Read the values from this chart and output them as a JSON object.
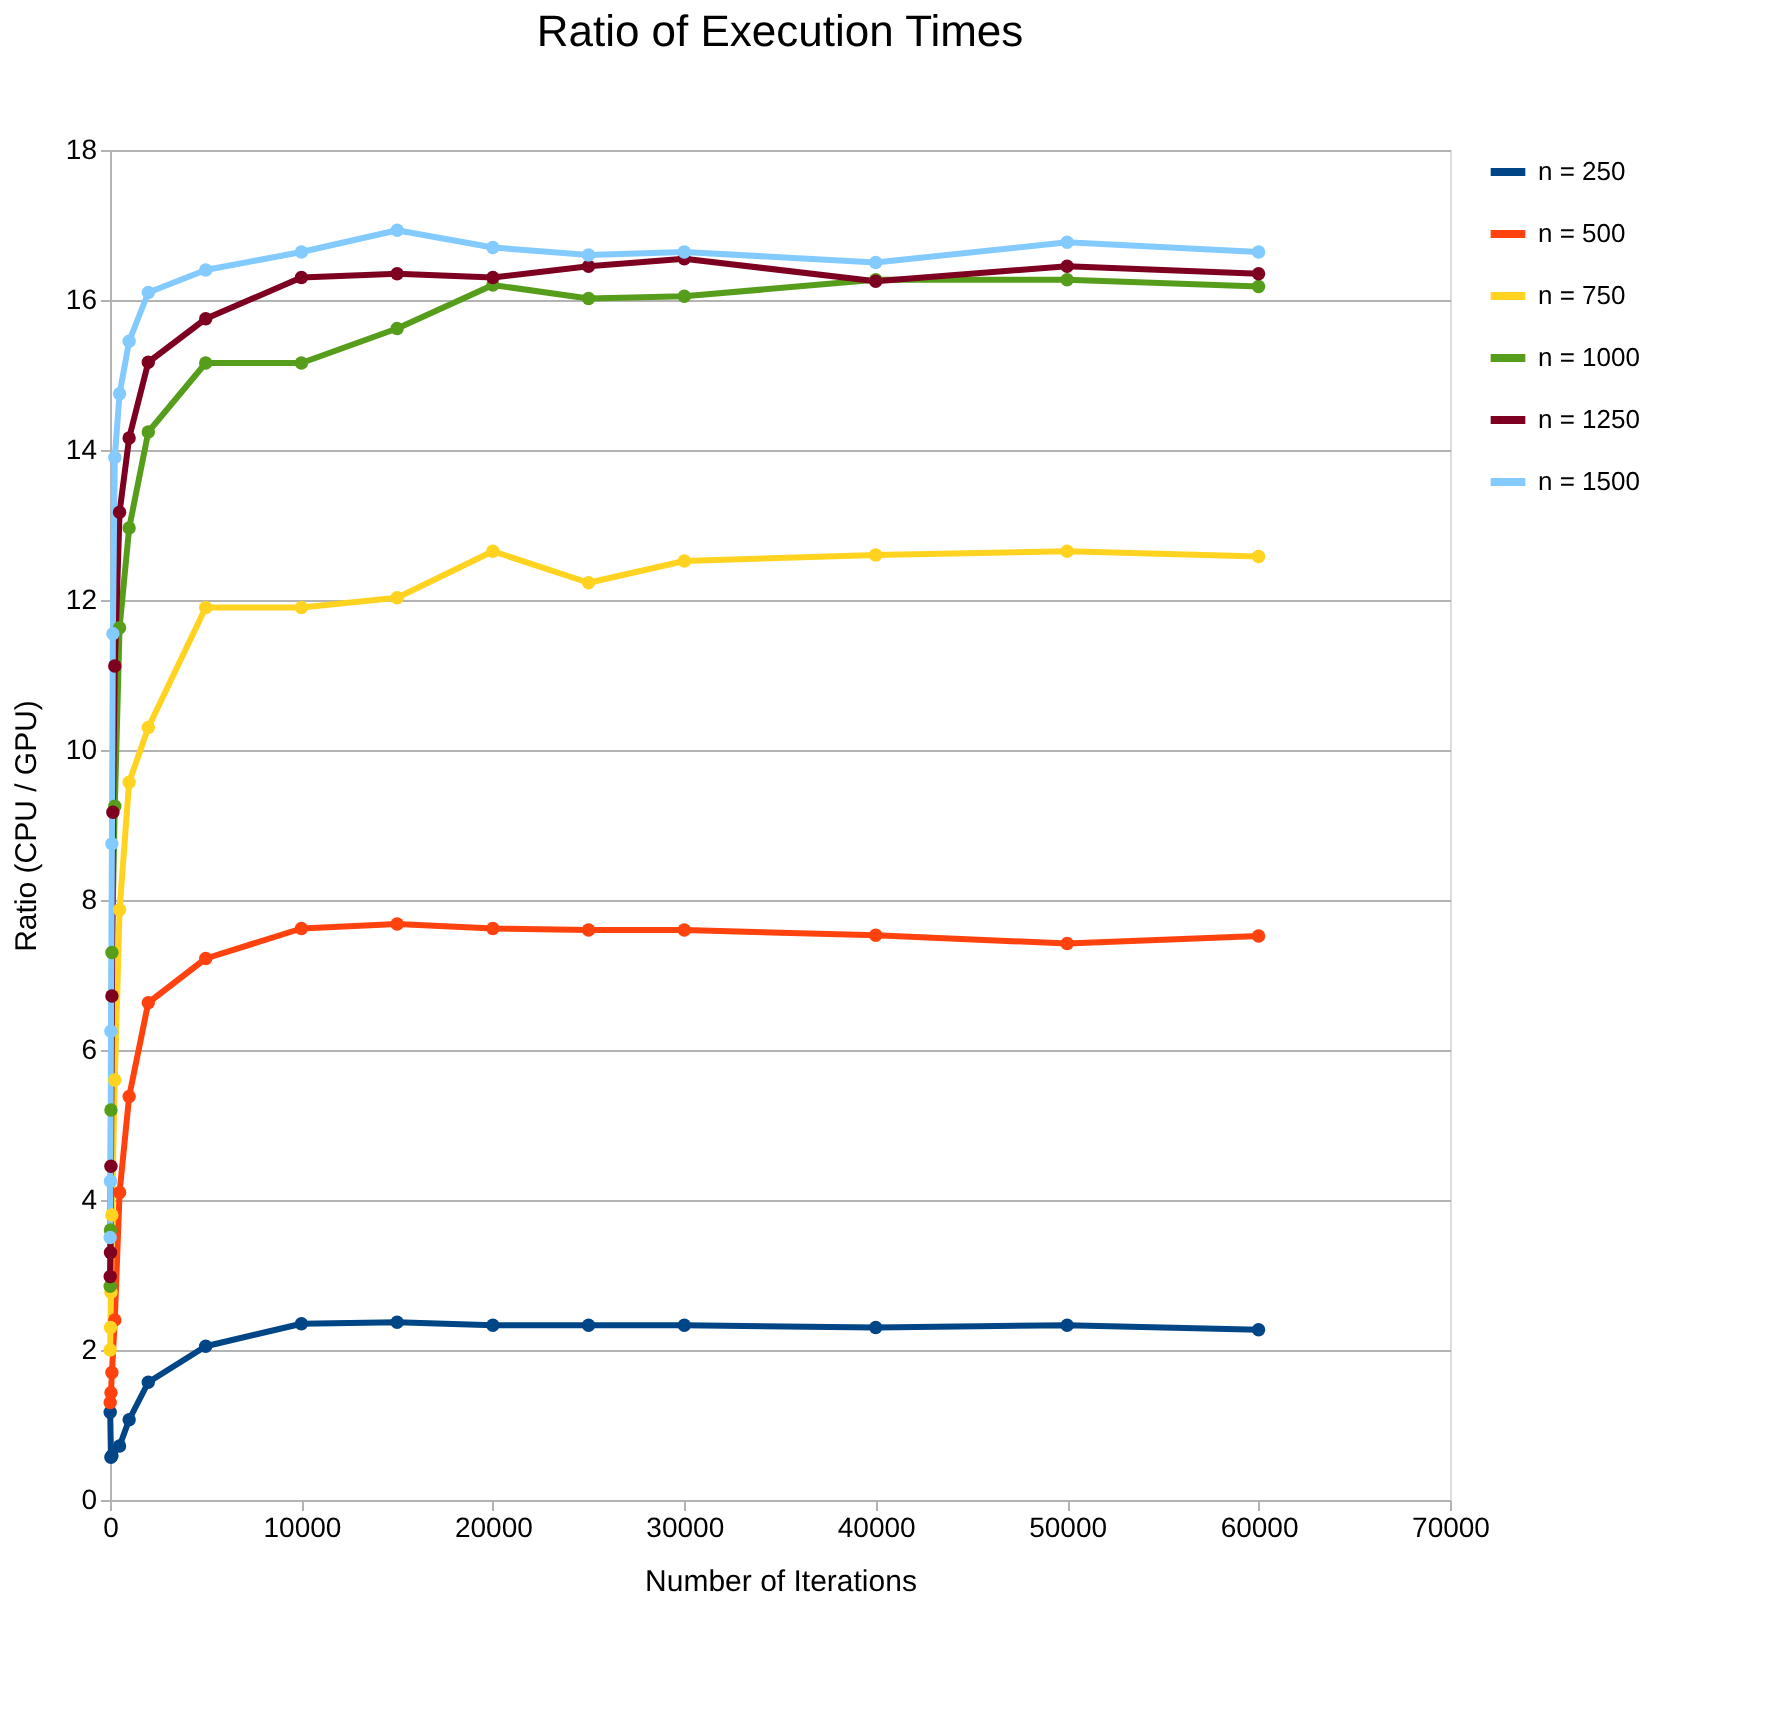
{
  "chart_data": {
    "type": "line",
    "title": "Ratio of Execution Times",
    "xlabel": "Number of Iterations",
    "ylabel": "Ratio (CPU / GPU)",
    "xlim": [
      0,
      70000
    ],
    "xticks": [
      0,
      10000,
      20000,
      30000,
      40000,
      50000,
      60000,
      70000
    ],
    "ylim": [
      0,
      18
    ],
    "yticks": [
      0,
      2,
      4,
      6,
      8,
      10,
      12,
      14,
      16,
      18
    ],
    "grid": "y",
    "legend": "right",
    "marker": "circle",
    "line_style": "solid",
    "series": [
      {
        "name": "n = 250",
        "color": "#004586",
        "x": [
          10,
          50,
          100,
          500,
          1000,
          2000,
          5000,
          10000,
          15000,
          20000,
          25000,
          30000,
          40000,
          50000,
          60000
        ],
        "values": [
          1.17,
          0.57,
          0.59,
          0.72,
          1.07,
          1.57,
          2.05,
          2.35,
          2.37,
          2.33,
          2.33,
          2.33,
          2.3,
          2.33,
          2.27
        ]
      },
      {
        "name": "n = 500",
        "color": "#ff420e",
        "x": [
          10,
          50,
          100,
          250,
          500,
          1000,
          2000,
          5000,
          10000,
          15000,
          20000,
          25000,
          30000,
          40000,
          50000,
          60000
        ],
        "values": [
          1.3,
          1.43,
          1.7,
          2.4,
          4.1,
          5.38,
          6.63,
          7.22,
          7.62,
          7.68,
          7.62,
          7.6,
          7.6,
          7.53,
          7.42,
          7.52
        ]
      },
      {
        "name": "n = 750",
        "color": "#ffd320",
        "x": [
          10,
          25,
          50,
          100,
          250,
          500,
          1000,
          2000,
          5000,
          10000,
          15000,
          20000,
          25000,
          30000,
          40000,
          50000,
          60000
        ],
        "values": [
          2.0,
          2.3,
          2.77,
          3.8,
          5.6,
          7.87,
          9.57,
          10.3,
          11.9,
          11.9,
          12.03,
          12.65,
          12.23,
          12.52,
          12.6,
          12.65,
          12.58
        ]
      },
      {
        "name": "n = 1000",
        "color": "#579d1c",
        "x": [
          10,
          25,
          50,
          100,
          250,
          500,
          1000,
          2000,
          5000,
          10000,
          15000,
          20000,
          25000,
          30000,
          40000,
          50000,
          60000
        ],
        "values": [
          2.85,
          3.6,
          5.2,
          7.3,
          9.25,
          11.63,
          12.96,
          14.24,
          15.16,
          15.16,
          15.62,
          16.2,
          16.02,
          16.05,
          16.27,
          16.27,
          16.18
        ]
      },
      {
        "name": "n = 1250",
        "color": "#7e0021",
        "x": [
          10,
          25,
          50,
          100,
          150,
          250,
          500,
          1000,
          2000,
          5000,
          10000,
          15000,
          20000,
          25000,
          30000,
          40000,
          50000,
          60000
        ],
        "values": [
          2.98,
          3.3,
          4.45,
          6.72,
          9.17,
          11.12,
          13.17,
          14.16,
          15.17,
          15.75,
          16.3,
          16.35,
          16.3,
          16.45,
          16.55,
          16.25,
          16.45,
          16.35
        ]
      },
      {
        "name": "n = 1500",
        "color": "#83caff",
        "x": [
          10,
          25,
          50,
          100,
          150,
          250,
          500,
          1000,
          2000,
          5000,
          10000,
          15000,
          20000,
          25000,
          30000,
          40000,
          50000,
          60000
        ],
        "values": [
          3.5,
          4.25,
          6.25,
          8.75,
          11.55,
          13.9,
          14.75,
          15.45,
          16.1,
          16.4,
          16.64,
          16.93,
          16.7,
          16.6,
          16.64,
          16.5,
          16.77,
          16.64
        ]
      }
    ]
  }
}
